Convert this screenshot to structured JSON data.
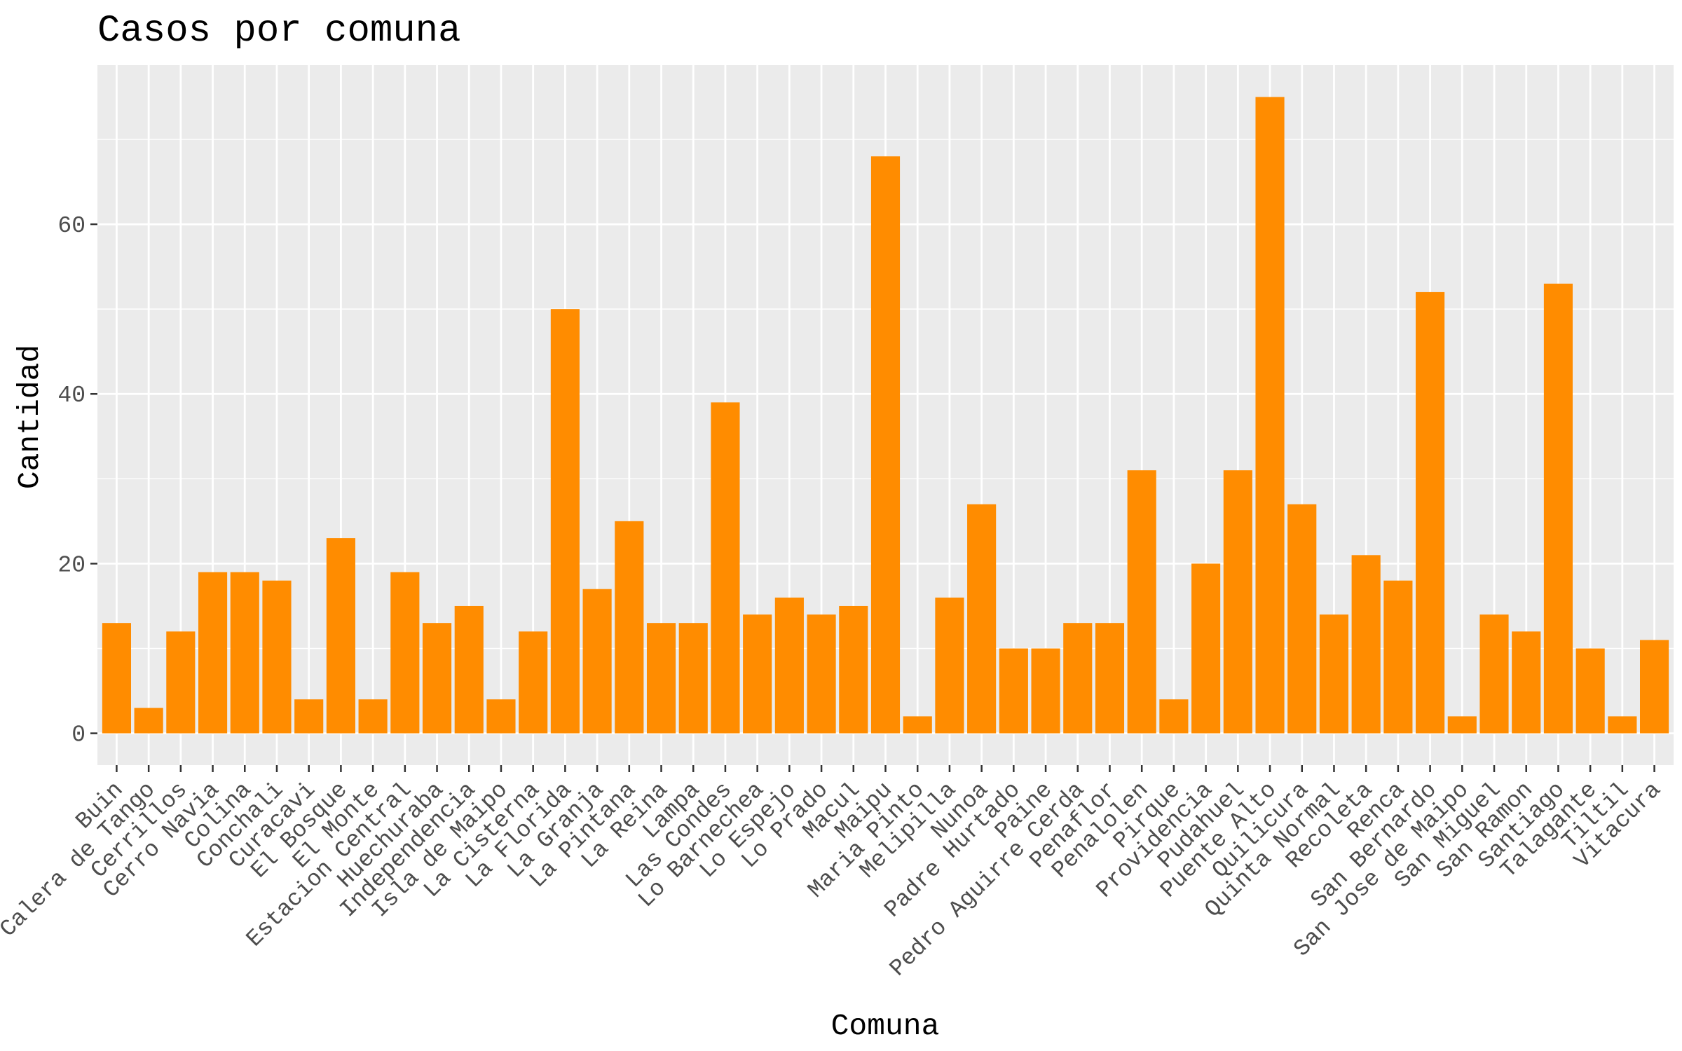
{
  "chart_data": {
    "type": "bar",
    "title": "Casos por comuna",
    "xlabel": "Comuna",
    "ylabel": "Cantidad",
    "ylim": [
      -3.75,
      78.75
    ],
    "yticks": [
      0,
      20,
      40,
      60
    ],
    "grid": true,
    "panel_color": "#EBEBEB",
    "grid_color": "#FFFFFF",
    "bar_color": "#FF8C00",
    "categories": [
      "Buin",
      "Calera de Tango",
      "Cerrillos",
      "Cerro Navia",
      "Colina",
      "Conchali",
      "Curacavi",
      "El Bosque",
      "El Monte",
      "Estacion Central",
      "Huechuraba",
      "Independencia",
      "Isla de Maipo",
      "La Cisterna",
      "La Florida",
      "La Granja",
      "La Pintana",
      "La Reina",
      "Lampa",
      "Las Condes",
      "Lo Barnechea",
      "Lo Espejo",
      "Lo Prado",
      "Macul",
      "Maipu",
      "Maria Pinto",
      "Melipilla",
      "Nunoa",
      "Padre Hurtado",
      "Paine",
      "Pedro Aguirre Cerda",
      "Penaflor",
      "Penalolen",
      "Pirque",
      "Providencia",
      "Pudahuel",
      "Puente Alto",
      "Quilicura",
      "Quinta Normal",
      "Recoleta",
      "Renca",
      "San Bernardo",
      "San Jose de Maipo",
      "San Miguel",
      "San Ramon",
      "Santiago",
      "Talagante",
      "Tiltil",
      "Vitacura"
    ],
    "values": [
      13,
      3,
      12,
      19,
      19,
      18,
      4,
      23,
      4,
      19,
      13,
      15,
      4,
      12,
      50,
      17,
      25,
      13,
      13,
      39,
      14,
      16,
      14,
      15,
      68,
      2,
      16,
      27,
      10,
      10,
      13,
      13,
      31,
      4,
      20,
      31,
      75,
      27,
      14,
      21,
      18,
      52,
      2,
      14,
      12,
      53,
      10,
      2,
      11
    ]
  }
}
